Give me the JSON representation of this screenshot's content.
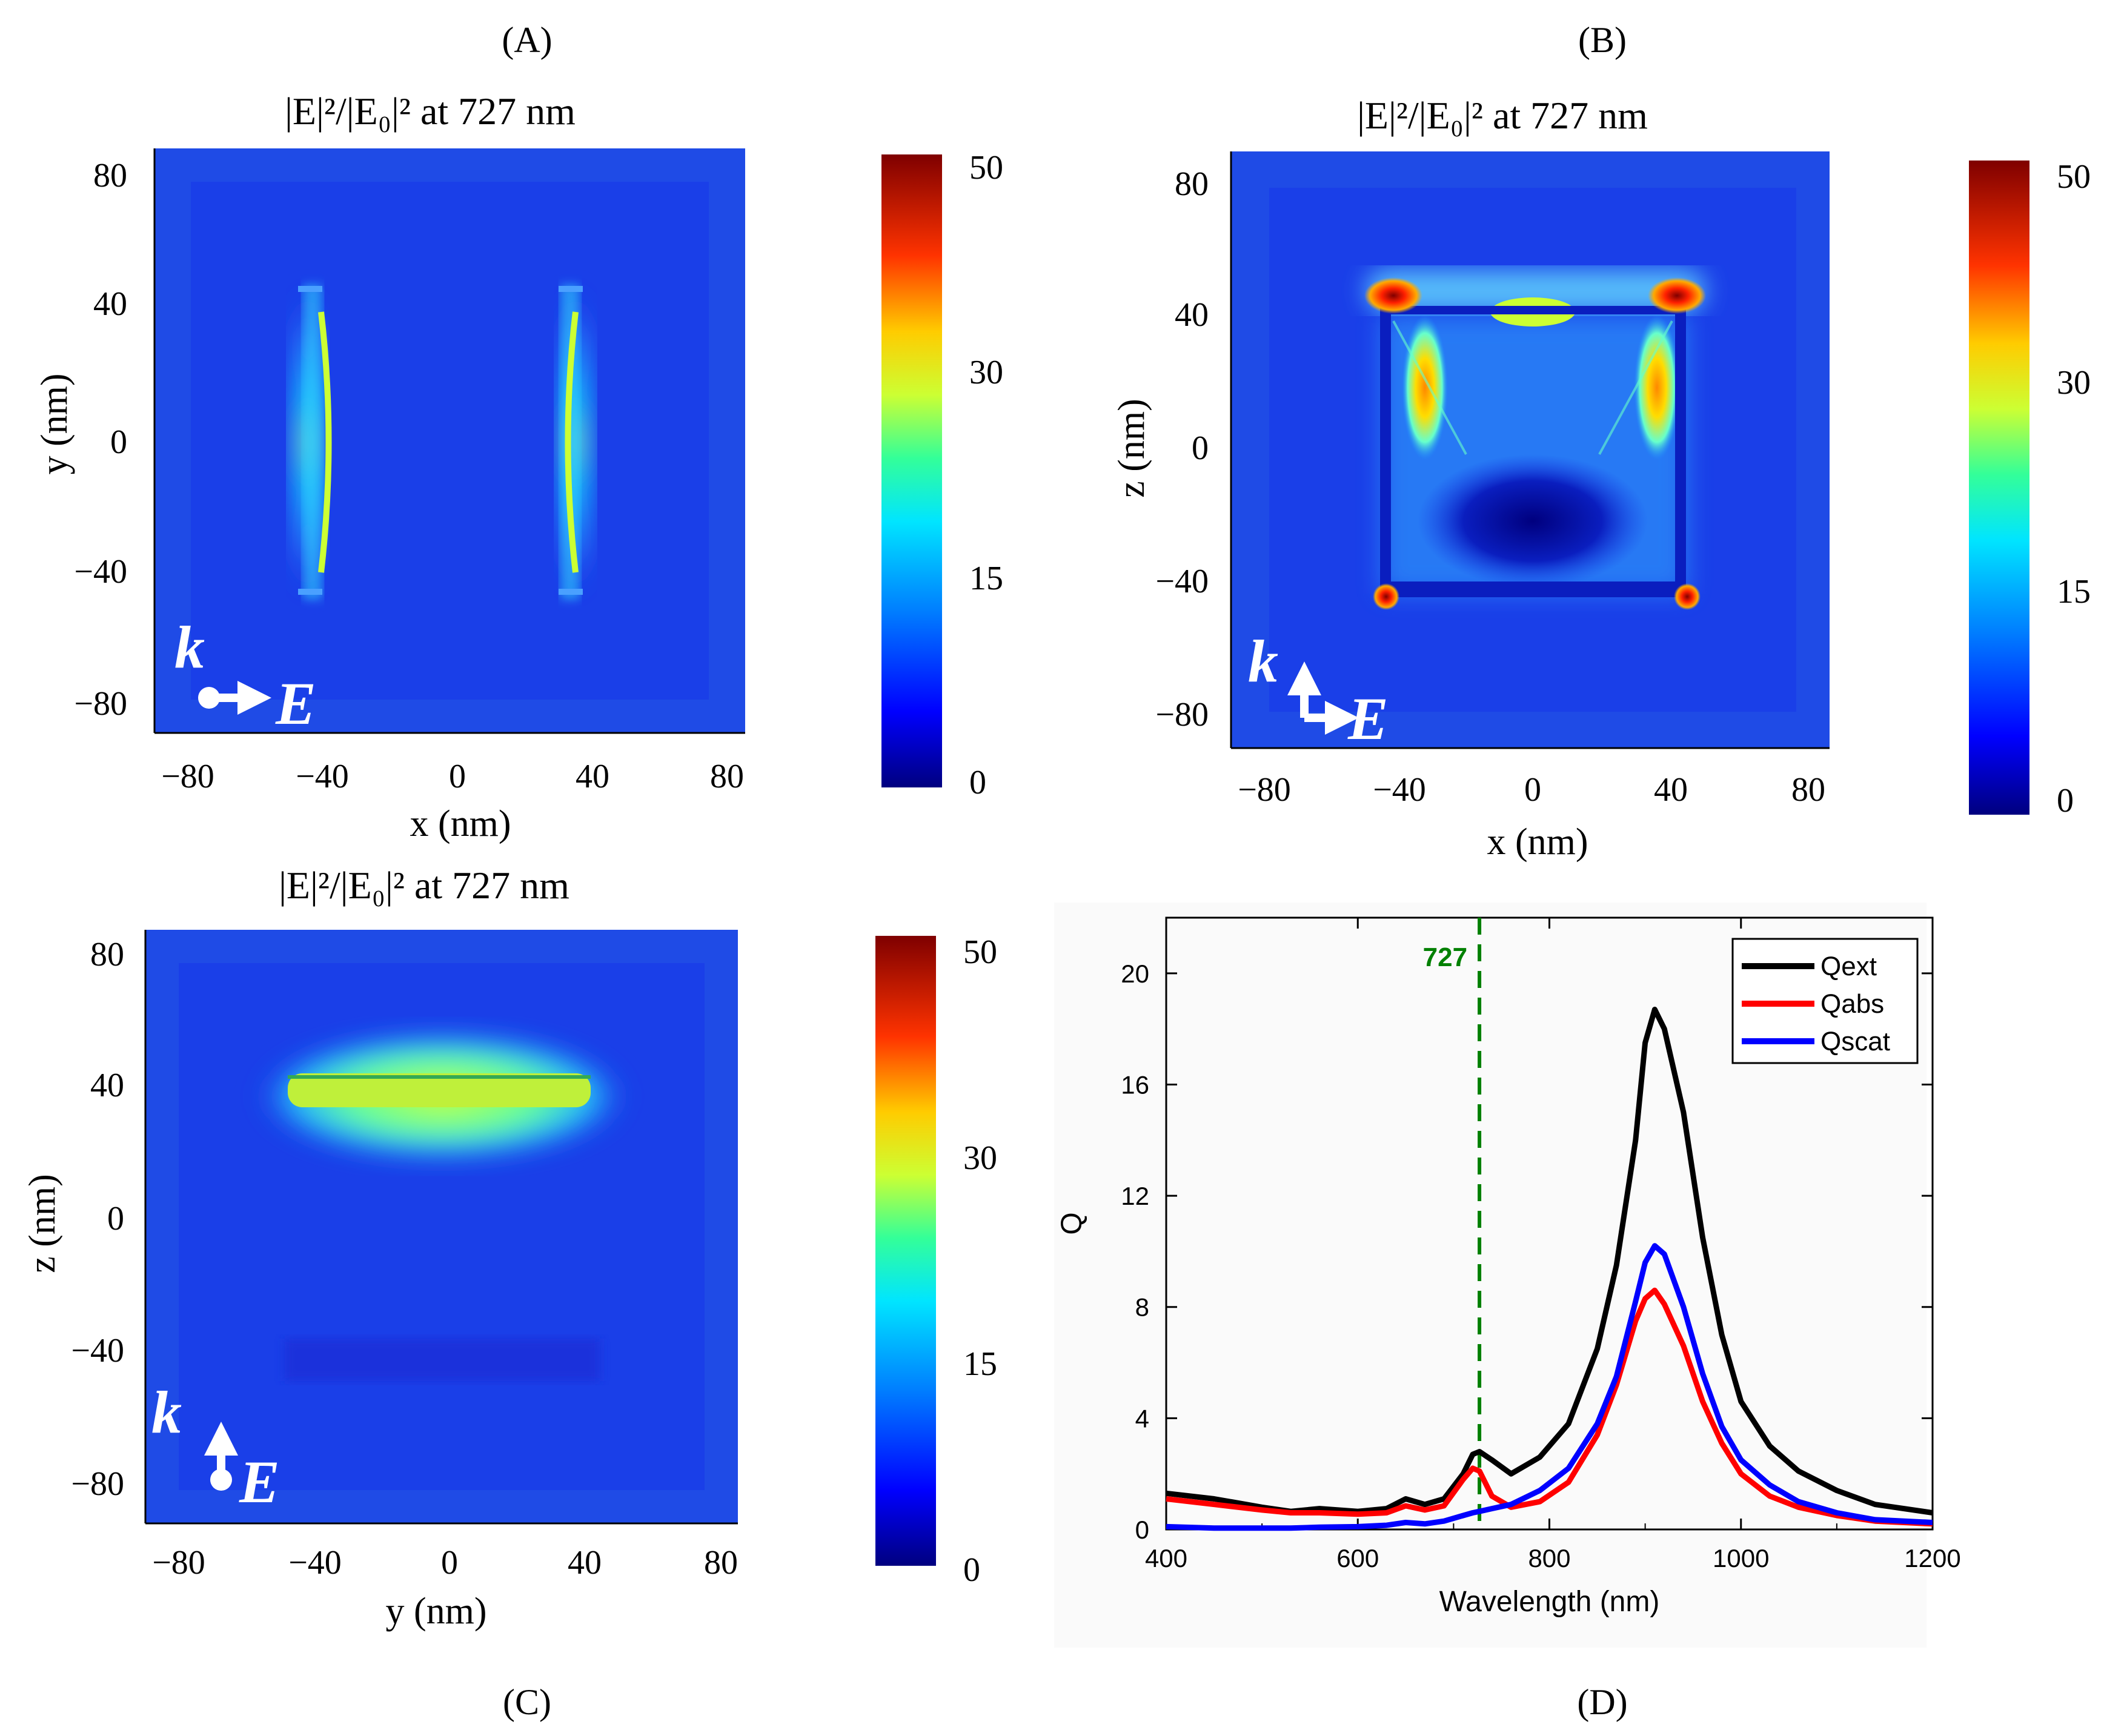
{
  "colors": {
    "field_background": "#1a3fe8",
    "field_border_background": "#1f4be6",
    "ext": "#000000",
    "abs": "#ff0000",
    "scat": "#0000ff",
    "marker": "#008000"
  },
  "icons": [
    "wavevector-k-arrow-icon",
    "polarization-E-arrow-icon"
  ],
  "panels": {
    "A": {
      "label": "(A)",
      "title": "|E|²/|E₀|² at 727 nm",
      "xlabel": "x (nm)",
      "ylabel": "y (nm)",
      "xticks": [
        "−80",
        "−40",
        "0",
        "40",
        "80"
      ],
      "yticks": [
        "80",
        "40",
        "0",
        "−40",
        "−80"
      ],
      "colorbar_ticks": [
        "50",
        "30",
        "15",
        "0"
      ],
      "k_label": "k",
      "e_label": "E"
    },
    "B": {
      "label": "(B)",
      "title": "|E|²/|E₀|² at 727 nm",
      "xlabel": "x (nm)",
      "ylabel": "z (nm)",
      "xticks": [
        "−80",
        "−40",
        "0",
        "40",
        "80"
      ],
      "yticks": [
        "80",
        "40",
        "0",
        "−40",
        "−80"
      ],
      "colorbar_ticks": [
        "50",
        "30",
        "15",
        "0"
      ],
      "k_label": "k",
      "e_label": "E"
    },
    "C": {
      "label": "(C)",
      "title": "|E|²/|E₀|² at 727 nm",
      "xlabel": "y (nm)",
      "ylabel": "z (nm)",
      "xticks": [
        "−80",
        "−40",
        "0",
        "40",
        "80"
      ],
      "yticks": [
        "80",
        "40",
        "0",
        "−40",
        "−80"
      ],
      "colorbar_ticks": [
        "50",
        "30",
        "15",
        "0"
      ],
      "k_label": "k",
      "e_label": "E"
    },
    "D": {
      "label": "(D)"
    }
  },
  "chart_data": {
    "type": "line",
    "title": "",
    "xlabel": "Wavelength (nm)",
    "ylabel": "Q",
    "xlim": [
      400,
      1200
    ],
    "ylim": [
      0,
      22
    ],
    "xticks": [
      400,
      600,
      800,
      1000,
      1200
    ],
    "yticks": [
      0,
      4,
      8,
      12,
      16,
      20
    ],
    "legend_position": "top-right",
    "annotation": {
      "x": 727,
      "label": "727"
    },
    "series": [
      {
        "name": "Qext",
        "color_key": "ext",
        "x": [
          400,
          450,
          500,
          530,
          560,
          600,
          630,
          650,
          670,
          690,
          710,
          720,
          727,
          740,
          760,
          790,
          820,
          850,
          870,
          890,
          900,
          910,
          920,
          940,
          960,
          980,
          1000,
          1030,
          1060,
          1100,
          1140,
          1200
        ],
        "y": [
          1.3,
          1.1,
          0.8,
          0.65,
          0.75,
          0.65,
          0.75,
          1.1,
          0.9,
          1.1,
          2.0,
          2.7,
          2.8,
          2.5,
          2.0,
          2.6,
          3.8,
          6.5,
          9.5,
          14.0,
          17.5,
          18.7,
          18.0,
          15.0,
          10.5,
          7.0,
          4.6,
          3.0,
          2.1,
          1.4,
          0.9,
          0.6
        ]
      },
      {
        "name": "Qabs",
        "color_key": "abs",
        "x": [
          400,
          450,
          500,
          530,
          560,
          600,
          630,
          650,
          670,
          690,
          710,
          720,
          727,
          740,
          760,
          790,
          820,
          850,
          870,
          890,
          900,
          910,
          920,
          940,
          960,
          980,
          1000,
          1030,
          1060,
          1100,
          1140,
          1200
        ],
        "y": [
          1.1,
          0.9,
          0.7,
          0.6,
          0.6,
          0.55,
          0.6,
          0.85,
          0.7,
          0.85,
          1.8,
          2.2,
          2.1,
          1.2,
          0.8,
          1.0,
          1.7,
          3.4,
          5.2,
          7.5,
          8.3,
          8.6,
          8.1,
          6.6,
          4.6,
          3.1,
          2.0,
          1.2,
          0.8,
          0.5,
          0.3,
          0.2
        ]
      },
      {
        "name": "Qscat",
        "color_key": "scat",
        "x": [
          400,
          450,
          500,
          530,
          560,
          600,
          630,
          650,
          670,
          690,
          710,
          720,
          727,
          740,
          760,
          790,
          820,
          850,
          870,
          890,
          900,
          910,
          920,
          940,
          960,
          980,
          1000,
          1030,
          1060,
          1100,
          1140,
          1200
        ],
        "y": [
          0.1,
          0.05,
          0.05,
          0.05,
          0.08,
          0.1,
          0.15,
          0.25,
          0.2,
          0.3,
          0.5,
          0.6,
          0.65,
          0.75,
          0.9,
          1.4,
          2.2,
          3.8,
          5.5,
          8.2,
          9.6,
          10.2,
          9.9,
          8.0,
          5.6,
          3.7,
          2.5,
          1.6,
          1.0,
          0.6,
          0.35,
          0.25
        ]
      }
    ]
  }
}
